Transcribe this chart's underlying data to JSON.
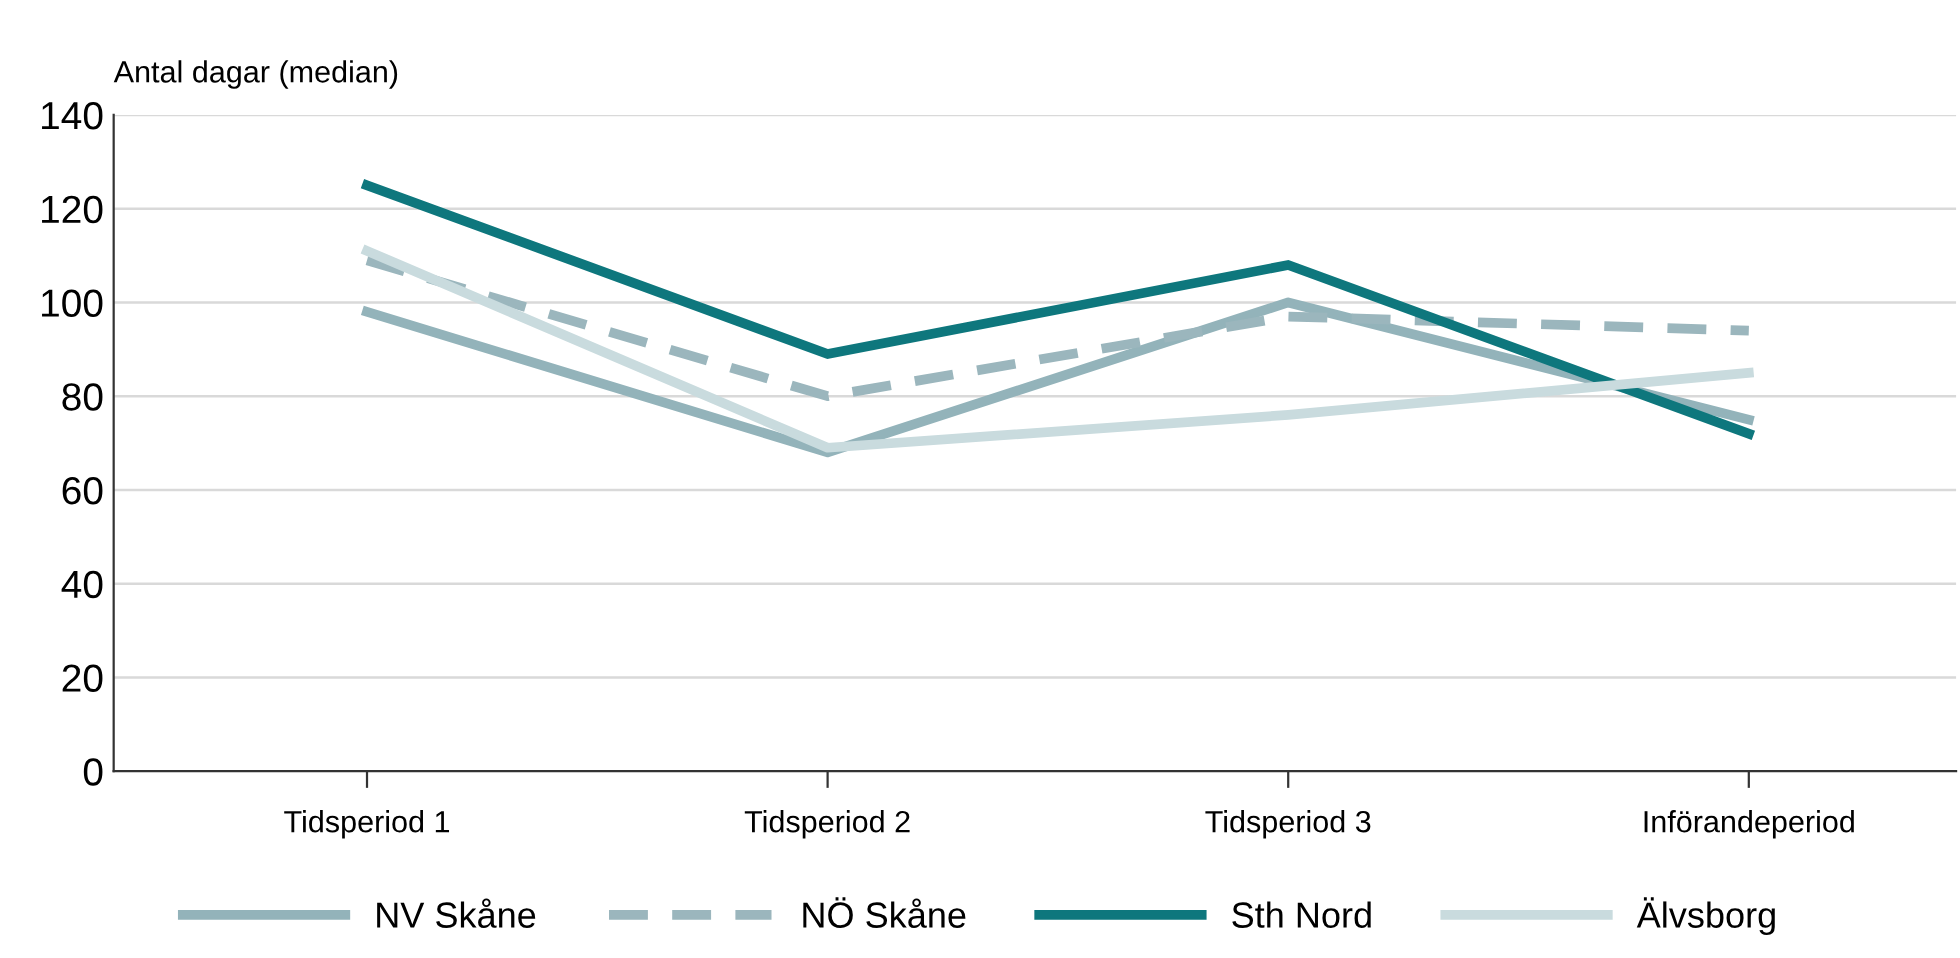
{
  "chart_data": {
    "type": "line",
    "ylabel": "Antal dagar (median)",
    "categories": [
      "Tidsperiod 1",
      "Tidsperiod 2",
      "Tidsperiod 3",
      "Införandeperiod"
    ],
    "series": [
      {
        "name": "NV Skåne",
        "color": "#93b3ba",
        "values": [
          98,
          68,
          100,
          75
        ]
      },
      {
        "name": "NÖ Skåne",
        "color": "#9bb6bd",
        "values": [
          109,
          80,
          97,
          94
        ],
        "line_style": "dashed"
      },
      {
        "name": "Sth Nord",
        "color": "#0e777d",
        "values": [
          125,
          89,
          108,
          72
        ]
      },
      {
        "name": "Älvsborg",
        "color": "#c9dbde",
        "values": [
          111,
          69,
          76,
          85
        ]
      }
    ],
    "ylim": [
      0,
      140
    ],
    "yticks": [
      0,
      20,
      40,
      60,
      80,
      100,
      120,
      140
    ],
    "grid": "y",
    "legend": "bottom",
    "marker": "none"
  }
}
